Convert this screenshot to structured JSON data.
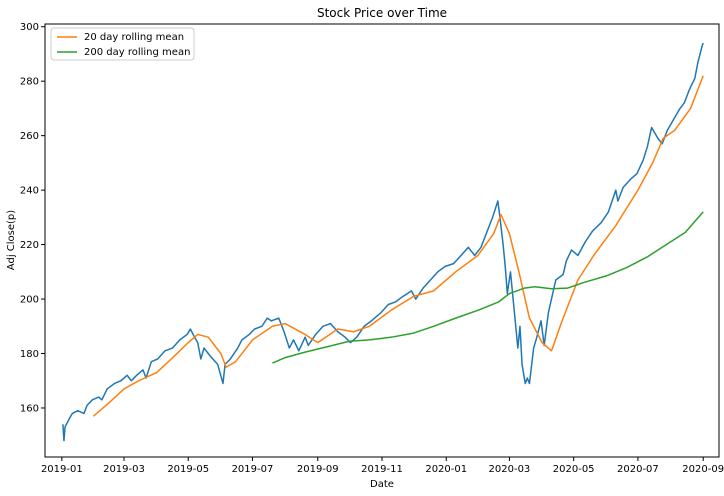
{
  "chart_data": {
    "type": "line",
    "title": "Stock Price over Time",
    "xlabel": "Date",
    "ylabel": "Adj Close(p)",
    "x_type": "date",
    "xlim": [
      "2018-12-16",
      "2020-09-16"
    ],
    "ylim": [
      142,
      301
    ],
    "grid": false,
    "legend_position": "top-left",
    "x_ticks": [
      {
        "date": "2019-01-01",
        "label": "2019-01"
      },
      {
        "date": "2019-03-01",
        "label": "2019-03"
      },
      {
        "date": "2019-05-01",
        "label": "2019-05"
      },
      {
        "date": "2019-07-01",
        "label": "2019-07"
      },
      {
        "date": "2019-09-01",
        "label": "2019-09"
      },
      {
        "date": "2019-11-01",
        "label": "2019-11"
      },
      {
        "date": "2020-01-01",
        "label": "2020-01"
      },
      {
        "date": "2020-03-01",
        "label": "2020-03"
      },
      {
        "date": "2020-05-01",
        "label": "2020-05"
      },
      {
        "date": "2020-07-01",
        "label": "2020-07"
      },
      {
        "date": "2020-09-01",
        "label": "2020-09"
      }
    ],
    "y_ticks": [
      160,
      180,
      200,
      220,
      240,
      260,
      280,
      300
    ],
    "series": [
      {
        "name": "Adj Close",
        "color": "#1f77b4",
        "points": [
          [
            "2019-01-02",
            154
          ],
          [
            "2019-01-03",
            148
          ],
          [
            "2019-01-04",
            153
          ],
          [
            "2019-01-08",
            156
          ],
          [
            "2019-01-11",
            158
          ],
          [
            "2019-01-16",
            159
          ],
          [
            "2019-01-22",
            158
          ],
          [
            "2019-01-25",
            161
          ],
          [
            "2019-01-30",
            163
          ],
          [
            "2019-02-05",
            164
          ],
          [
            "2019-02-08",
            163
          ],
          [
            "2019-02-13",
            167
          ],
          [
            "2019-02-20",
            169
          ],
          [
            "2019-02-26",
            170
          ],
          [
            "2019-03-04",
            172
          ],
          [
            "2019-03-08",
            170
          ],
          [
            "2019-03-13",
            172
          ],
          [
            "2019-03-19",
            174
          ],
          [
            "2019-03-22",
            171
          ],
          [
            "2019-03-27",
            177
          ],
          [
            "2019-04-02",
            178
          ],
          [
            "2019-04-09",
            181
          ],
          [
            "2019-04-16",
            182
          ],
          [
            "2019-04-23",
            185
          ],
          [
            "2019-04-30",
            187
          ],
          [
            "2019-05-03",
            189
          ],
          [
            "2019-05-07",
            186
          ],
          [
            "2019-05-10",
            184
          ],
          [
            "2019-05-13",
            178
          ],
          [
            "2019-05-16",
            182
          ],
          [
            "2019-05-22",
            179
          ],
          [
            "2019-05-29",
            176
          ],
          [
            "2019-06-03",
            169
          ],
          [
            "2019-06-05",
            176
          ],
          [
            "2019-06-10",
            178
          ],
          [
            "2019-06-17",
            182
          ],
          [
            "2019-06-21",
            185
          ],
          [
            "2019-06-28",
            187
          ],
          [
            "2019-07-03",
            189
          ],
          [
            "2019-07-10",
            190
          ],
          [
            "2019-07-15",
            193
          ],
          [
            "2019-07-19",
            192
          ],
          [
            "2019-07-26",
            193
          ],
          [
            "2019-07-31",
            188
          ],
          [
            "2019-08-05",
            182
          ],
          [
            "2019-08-09",
            185
          ],
          [
            "2019-08-14",
            181
          ],
          [
            "2019-08-20",
            186
          ],
          [
            "2019-08-23",
            183
          ],
          [
            "2019-08-30",
            187
          ],
          [
            "2019-09-06",
            190
          ],
          [
            "2019-09-13",
            191
          ],
          [
            "2019-09-20",
            188
          ],
          [
            "2019-09-27",
            186
          ],
          [
            "2019-10-02",
            184
          ],
          [
            "2019-10-08",
            186
          ],
          [
            "2019-10-15",
            190
          ],
          [
            "2019-10-22",
            192
          ],
          [
            "2019-10-31",
            195
          ],
          [
            "2019-11-07",
            198
          ],
          [
            "2019-11-14",
            199
          ],
          [
            "2019-11-21",
            201
          ],
          [
            "2019-11-29",
            203
          ],
          [
            "2019-12-03",
            200
          ],
          [
            "2019-12-10",
            204
          ],
          [
            "2019-12-17",
            207
          ],
          [
            "2019-12-24",
            210
          ],
          [
            "2019-12-31",
            212
          ],
          [
            "2020-01-08",
            213
          ],
          [
            "2020-01-15",
            216
          ],
          [
            "2020-01-22",
            219
          ],
          [
            "2020-01-28",
            216
          ],
          [
            "2020-02-03",
            219
          ],
          [
            "2020-02-10",
            226
          ],
          [
            "2020-02-14",
            230
          ],
          [
            "2020-02-19",
            236
          ],
          [
            "2020-02-21",
            230
          ],
          [
            "2020-02-24",
            220
          ],
          [
            "2020-02-26",
            212
          ],
          [
            "2020-02-28",
            202
          ],
          [
            "2020-03-02",
            210
          ],
          [
            "2020-03-05",
            198
          ],
          [
            "2020-03-09",
            182
          ],
          [
            "2020-03-11",
            190
          ],
          [
            "2020-03-13",
            176
          ],
          [
            "2020-03-16",
            169
          ],
          [
            "2020-03-18",
            171
          ],
          [
            "2020-03-20",
            169
          ],
          [
            "2020-03-24",
            182
          ],
          [
            "2020-03-27",
            186
          ],
          [
            "2020-03-31",
            192
          ],
          [
            "2020-04-03",
            183
          ],
          [
            "2020-04-07",
            195
          ],
          [
            "2020-04-14",
            207
          ],
          [
            "2020-04-21",
            209
          ],
          [
            "2020-04-24",
            214
          ],
          [
            "2020-04-29",
            218
          ],
          [
            "2020-05-05",
            216
          ],
          [
            "2020-05-12",
            221
          ],
          [
            "2020-05-19",
            225
          ],
          [
            "2020-05-27",
            228
          ],
          [
            "2020-06-03",
            232
          ],
          [
            "2020-06-10",
            240
          ],
          [
            "2020-06-12",
            236
          ],
          [
            "2020-06-17",
            241
          ],
          [
            "2020-06-24",
            244
          ],
          [
            "2020-06-30",
            246
          ],
          [
            "2020-07-06",
            251
          ],
          [
            "2020-07-10",
            256
          ],
          [
            "2020-07-14",
            263
          ],
          [
            "2020-07-20",
            259
          ],
          [
            "2020-07-24",
            257
          ],
          [
            "2020-07-29",
            262
          ],
          [
            "2020-08-04",
            266
          ],
          [
            "2020-08-10",
            270
          ],
          [
            "2020-08-14",
            272
          ],
          [
            "2020-08-19",
            277
          ],
          [
            "2020-08-24",
            281
          ],
          [
            "2020-08-27",
            287
          ],
          [
            "2020-08-31",
            293
          ],
          [
            "2020-09-01",
            294
          ]
        ]
      },
      {
        "name": "20 day rolling mean",
        "color": "#ff7f0e",
        "points": [
          [
            "2019-01-31",
            157
          ],
          [
            "2019-02-15",
            162
          ],
          [
            "2019-03-01",
            167
          ],
          [
            "2019-03-15",
            170
          ],
          [
            "2019-04-01",
            173
          ],
          [
            "2019-04-15",
            178
          ],
          [
            "2019-05-01",
            184
          ],
          [
            "2019-05-10",
            187
          ],
          [
            "2019-05-20",
            186
          ],
          [
            "2019-06-01",
            180
          ],
          [
            "2019-06-06",
            175
          ],
          [
            "2019-06-15",
            177
          ],
          [
            "2019-07-01",
            185
          ],
          [
            "2019-07-20",
            190
          ],
          [
            "2019-08-01",
            191
          ],
          [
            "2019-08-20",
            187
          ],
          [
            "2019-09-01",
            184
          ],
          [
            "2019-09-20",
            189
          ],
          [
            "2019-10-05",
            188
          ],
          [
            "2019-10-20",
            190
          ],
          [
            "2019-11-10",
            196
          ],
          [
            "2019-12-01",
            201
          ],
          [
            "2019-12-20",
            203
          ],
          [
            "2020-01-10",
            210
          ],
          [
            "2020-01-31",
            216
          ],
          [
            "2020-02-15",
            224
          ],
          [
            "2020-02-22",
            231
          ],
          [
            "2020-03-01",
            224
          ],
          [
            "2020-03-10",
            210
          ],
          [
            "2020-03-20",
            193
          ],
          [
            "2020-04-01",
            184
          ],
          [
            "2020-04-10",
            181
          ],
          [
            "2020-04-20",
            192
          ],
          [
            "2020-05-05",
            207
          ],
          [
            "2020-05-20",
            216
          ],
          [
            "2020-06-10",
            227
          ],
          [
            "2020-07-01",
            240
          ],
          [
            "2020-07-15",
            250
          ],
          [
            "2020-07-25",
            259
          ],
          [
            "2020-08-05",
            262
          ],
          [
            "2020-08-20",
            270
          ],
          [
            "2020-09-01",
            282
          ]
        ]
      },
      {
        "name": "200 day rolling mean",
        "color": "#2ca02c",
        "points": [
          [
            "2019-07-20",
            176.5
          ],
          [
            "2019-08-01",
            178.5
          ],
          [
            "2019-08-20",
            180.5
          ],
          [
            "2019-09-10",
            182.5
          ],
          [
            "2019-10-01",
            184.5
          ],
          [
            "2019-10-20",
            185
          ],
          [
            "2019-11-10",
            186
          ],
          [
            "2019-12-01",
            187.5
          ],
          [
            "2019-12-20",
            190
          ],
          [
            "2020-01-10",
            193
          ],
          [
            "2020-02-01",
            196
          ],
          [
            "2020-02-20",
            199
          ],
          [
            "2020-03-01",
            202
          ],
          [
            "2020-03-15",
            204
          ],
          [
            "2020-03-25",
            204.5
          ],
          [
            "2020-04-10",
            203.8
          ],
          [
            "2020-04-25",
            204
          ],
          [
            "2020-05-10",
            206
          ],
          [
            "2020-06-01",
            208.5
          ],
          [
            "2020-06-20",
            211.5
          ],
          [
            "2020-07-10",
            215.5
          ],
          [
            "2020-08-01",
            221
          ],
          [
            "2020-08-15",
            224.5
          ],
          [
            "2020-09-01",
            232
          ]
        ]
      }
    ],
    "legend": [
      "20 day rolling mean",
      "200 day rolling mean"
    ]
  }
}
